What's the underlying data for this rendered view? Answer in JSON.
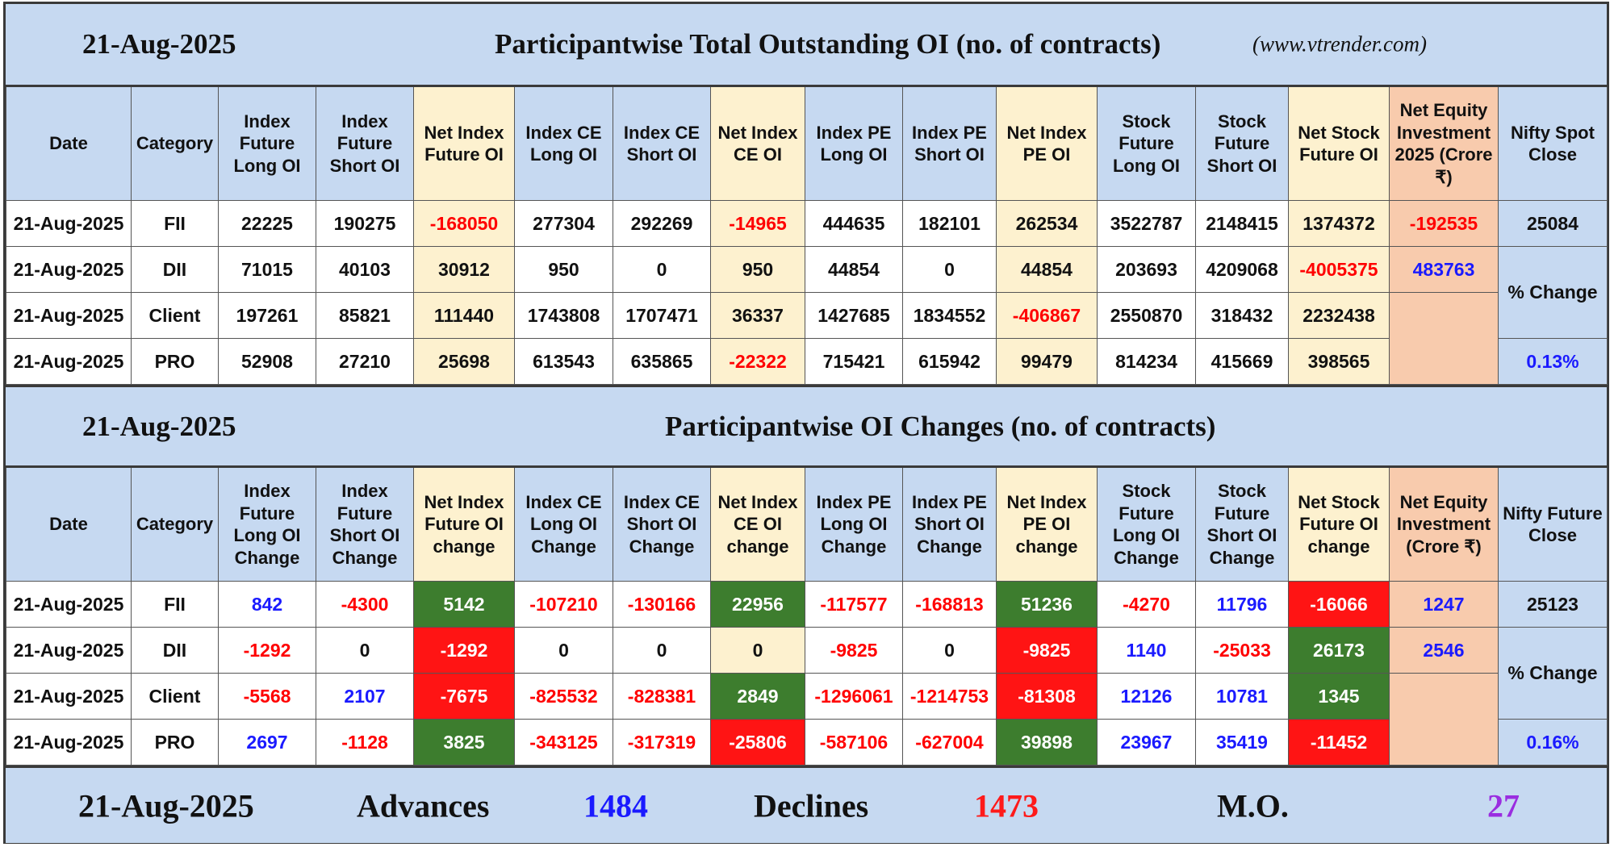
{
  "section1": {
    "date": "21-Aug-2025",
    "title": "Participantwise Total Outstanding OI (no. of contracts)",
    "website": "(www.vtrender.com)",
    "headers": [
      "Date",
      "Category",
      "Index Future Long OI",
      "Index Future Short OI",
      "Net Index Future OI",
      "Index CE Long OI",
      "Index CE Short OI",
      "Net Index CE OI",
      "Index PE Long OI",
      "Index PE Short OI",
      "Net Index PE OI",
      "Stock Future Long OI",
      "Stock Future Short OI",
      "Net Stock Future OI",
      "Net Equity Investment 2025 (Crore ₹)",
      "Nifty Spot Close"
    ],
    "rows": [
      {
        "date": "21-Aug-2025",
        "category": "FII",
        "values": [
          22225,
          190275,
          -168050,
          277304,
          292269,
          -14965,
          444635,
          182101,
          262534,
          3522787,
          2148415,
          1374372
        ]
      },
      {
        "date": "21-Aug-2025",
        "category": "DII",
        "values": [
          71015,
          40103,
          30912,
          950,
          0,
          950,
          44854,
          0,
          44854,
          203693,
          4209068,
          -4005375
        ]
      },
      {
        "date": "21-Aug-2025",
        "category": "Client",
        "values": [
          197261,
          85821,
          111440,
          1743808,
          1707471,
          36337,
          1427685,
          1834552,
          -406867,
          2550870,
          318432,
          2232438
        ]
      },
      {
        "date": "21-Aug-2025",
        "category": "PRO",
        "values": [
          52908,
          27210,
          25698,
          613543,
          635865,
          -22322,
          715421,
          615942,
          99479,
          814234,
          415669,
          398565
        ]
      }
    ],
    "equity": [
      -192535,
      483763
    ],
    "nifty_close": 25084,
    "change_label": "% Change",
    "change": "0.13%"
  },
  "section2": {
    "date": "21-Aug-2025",
    "title": "Participantwise OI Changes (no. of contracts)",
    "headers": [
      "Date",
      "Category",
      "Index Future Long OI Change",
      "Index Future Short OI Change",
      "Net Index Future OI change",
      "Index CE Long OI Change",
      "Index CE Short OI Change",
      "Net Index CE OI change",
      "Index PE Long OI Change",
      "Index PE Short OI Change",
      "Net Index PE OI change",
      "Stock Future Long OI Change",
      "Stock Future Short OI Change",
      "Net Stock Future OI change",
      "Net Equity Investment (Crore ₹)",
      "Nifty Future Close"
    ],
    "rows": [
      {
        "date": "21-Aug-2025",
        "category": "FII",
        "values": [
          842,
          -4300,
          5142,
          -107210,
          -130166,
          22956,
          -117577,
          -168813,
          51236,
          -4270,
          11796,
          -16066
        ]
      },
      {
        "date": "21-Aug-2025",
        "category": "DII",
        "values": [
          -1292,
          0,
          -1292,
          0,
          0,
          0,
          -9825,
          0,
          -9825,
          1140,
          -25033,
          26173
        ]
      },
      {
        "date": "21-Aug-2025",
        "category": "Client",
        "values": [
          -5568,
          2107,
          -7675,
          -825532,
          -828381,
          2849,
          -1296061,
          -1214753,
          -81308,
          12126,
          10781,
          1345
        ]
      },
      {
        "date": "21-Aug-2025",
        "category": "PRO",
        "values": [
          2697,
          -1128,
          3825,
          -343125,
          -317319,
          -25806,
          -587106,
          -627004,
          39898,
          23967,
          35419,
          -11452
        ]
      }
    ],
    "equity": [
      1247,
      2546
    ],
    "nifty_close": 25123,
    "change_label": "% Change",
    "change": "0.16%"
  },
  "footer": {
    "date": "21-Aug-2025",
    "advances_label": "Advances",
    "advances": 1484,
    "declines_label": "Declines",
    "declines": 1473,
    "mo_label": "M.O.",
    "mo": 27
  }
}
